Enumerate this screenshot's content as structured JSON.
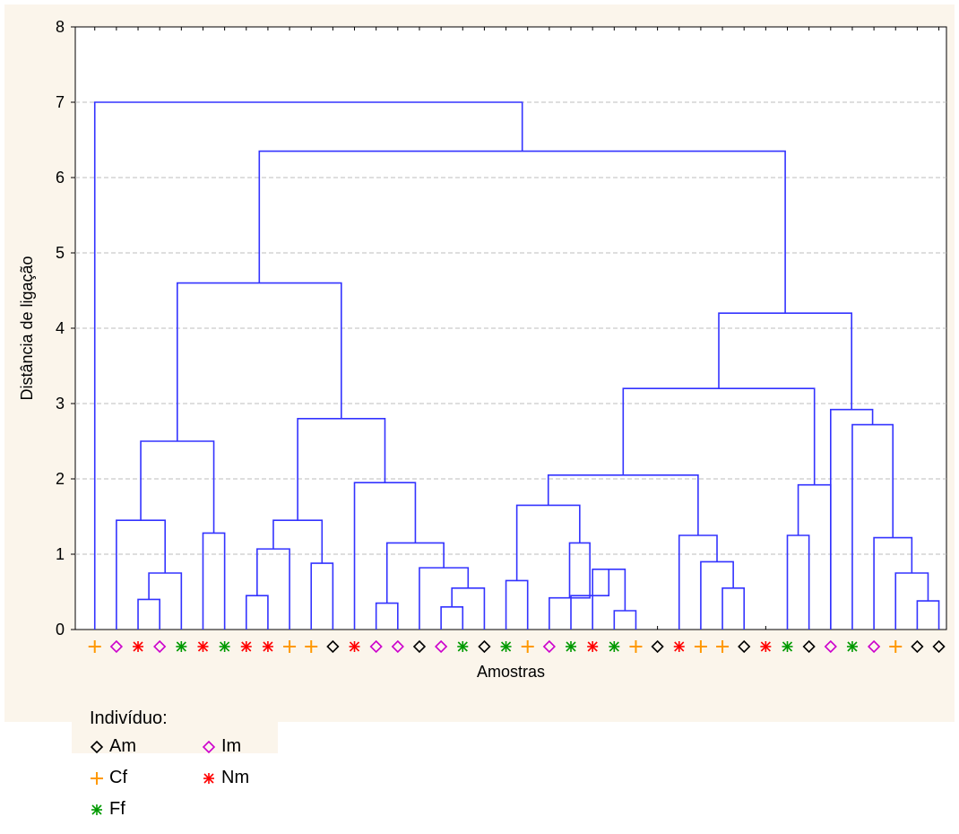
{
  "chart_data": {
    "type": "dendrogram",
    "ylabel": "Distância de ligação",
    "xlabel": "Amostras",
    "ylim": [
      0,
      8
    ],
    "yticks": [
      0,
      1,
      2,
      3,
      4,
      5,
      6,
      7,
      8
    ],
    "grid": "horizontal dashed",
    "line_color": "#3333ff",
    "leaves": [
      "Cf",
      "Im",
      "Nm",
      "Im",
      "Ff",
      "Nm",
      "Ff",
      "Nm",
      "Nm",
      "Cf",
      "Cf",
      "Am",
      "Nm",
      "Im",
      "Im",
      "Am",
      "Im",
      "Ff",
      "Am",
      "Ff",
      "Cf",
      "Im",
      "Ff",
      "Nm",
      "Ff",
      "Cf",
      "Am",
      "Nm",
      "Cf",
      "Cf",
      "Am",
      "Nm",
      "Ff",
      "Am",
      "Im",
      "Ff",
      "Im",
      "Cf",
      "Am",
      "Am"
    ],
    "merges": [
      {
        "left": 2,
        "right": 3,
        "height": 0.4
      },
      {
        "left": 40,
        "right": 4,
        "height": 0.75
      },
      {
        "left": 1,
        "right": 41,
        "height": 1.45
      },
      {
        "left": 5,
        "right": 6,
        "height": 1.28
      },
      {
        "left": 42,
        "right": 43,
        "height": 2.5
      },
      {
        "left": 7,
        "right": 8,
        "height": 0.45
      },
      {
        "left": 45,
        "right": 9,
        "height": 1.07
      },
      {
        "left": 10,
        "right": 11,
        "height": 0.88
      },
      {
        "left": 46,
        "right": 47,
        "height": 1.45
      },
      {
        "left": 13,
        "right": 14,
        "height": 0.35
      },
      {
        "left": 16,
        "right": 17,
        "height": 0.3
      },
      {
        "left": 50,
        "right": 18,
        "height": 0.55
      },
      {
        "left": 15,
        "right": 51,
        "height": 0.82
      },
      {
        "left": 49,
        "right": 52,
        "height": 1.15
      },
      {
        "left": 12,
        "right": 53,
        "height": 1.95
      },
      {
        "left": 48,
        "right": 54,
        "height": 2.8
      },
      {
        "left": 44,
        "right": 55,
        "height": 4.6
      },
      {
        "left": 19,
        "right": 20,
        "height": 0.65
      },
      {
        "left": 24,
        "right": 25,
        "height": 0.25
      },
      {
        "left": 23,
        "right": 58,
        "height": 0.8
      },
      {
        "left": 22,
        "right": 59,
        "height": 0.45
      },
      {
        "left": 21,
        "right": 60,
        "height": 0.42
      },
      {
        "left": 61,
        "right": 60,
        "height": 1.15
      },
      {
        "left": 57,
        "right": 62,
        "height": 1.65
      },
      {
        "left": 29,
        "right": 30,
        "height": 0.55
      },
      {
        "left": 28,
        "right": 64,
        "height": 0.9
      },
      {
        "left": 27,
        "right": 65,
        "height": 1.25
      },
      {
        "left": 63,
        "right": 66,
        "height": 2.05
      },
      {
        "left": 32,
        "right": 33,
        "height": 1.25
      },
      {
        "left": 68,
        "right": 34,
        "height": 1.92
      },
      {
        "left": 67,
        "right": 69,
        "height": 3.2
      },
      {
        "left": 38,
        "right": 39,
        "height": 0.38
      },
      {
        "left": 37,
        "right": 71,
        "height": 0.75
      },
      {
        "left": 36,
        "right": 72,
        "height": 1.22
      },
      {
        "left": 35,
        "right": 73,
        "height": 2.72
      },
      {
        "left": 34,
        "right": 74,
        "height": 2.92
      },
      {
        "left": 70,
        "right": 75,
        "height": 4.2
      },
      {
        "left": 56,
        "right": 76,
        "height": 6.35
      },
      {
        "left": 0,
        "right": 77,
        "height": 7.0
      }
    ]
  },
  "legend": {
    "title": "Indivíduo:",
    "items": [
      {
        "symbol": "diamond",
        "label": "Am",
        "color": "#000000"
      },
      {
        "symbol": "diamond",
        "label": "Im",
        "color": "#cc00cc"
      },
      {
        "symbol": "plus",
        "label": "Cf",
        "color": "#ff9900"
      },
      {
        "symbol": "asterisk",
        "label": "Nm",
        "color": "#ff0000"
      },
      {
        "symbol": "asterisk",
        "label": "Ff",
        "color": "#009900"
      }
    ]
  },
  "colors": {
    "Am": "#000000",
    "Im": "#cc00cc",
    "Cf": "#ff9900",
    "Nm": "#ff0000",
    "Ff": "#009900",
    "line": "#3333ff"
  }
}
